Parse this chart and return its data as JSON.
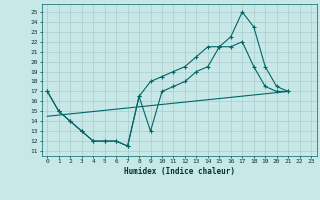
{
  "xlabel": "Humidex (Indice chaleur)",
  "bg_color": "#c8e8e8",
  "grid_color": "#aacccc",
  "line_color": "#006666",
  "xlim": [
    -0.5,
    23.5
  ],
  "ylim": [
    10.5,
    25.8
  ],
  "yticks": [
    11,
    12,
    13,
    14,
    15,
    16,
    17,
    18,
    19,
    20,
    21,
    22,
    23,
    24,
    25
  ],
  "xticks": [
    0,
    1,
    2,
    3,
    4,
    5,
    6,
    7,
    8,
    9,
    10,
    11,
    12,
    13,
    14,
    15,
    16,
    17,
    18,
    19,
    20,
    21,
    22,
    23
  ],
  "series1_x": [
    0,
    1,
    2,
    3,
    4,
    5,
    6,
    7,
    8,
    9,
    10,
    11,
    12,
    13,
    14,
    15,
    16,
    17,
    18,
    19,
    20,
    21
  ],
  "series1_y": [
    17,
    15,
    14,
    13,
    12,
    12,
    12,
    11.5,
    16.5,
    13,
    17,
    17.5,
    18,
    19,
    19.5,
    21.5,
    21.5,
    22,
    19.5,
    17.5,
    17,
    17
  ],
  "series2_x": [
    0,
    1,
    2,
    3,
    4,
    5,
    6,
    7,
    8,
    9,
    10,
    11,
    12,
    13,
    14,
    15,
    16,
    17,
    18,
    19,
    20,
    21
  ],
  "series2_y": [
    17,
    15,
    14,
    13,
    12,
    12,
    12,
    11.5,
    16.5,
    18,
    18.5,
    19,
    19.5,
    20.5,
    21.5,
    21.5,
    22.5,
    25,
    23.5,
    19.5,
    17.5,
    17
  ],
  "series3_x": [
    0,
    21
  ],
  "series3_y": [
    14.5,
    17
  ],
  "marker1_x": [
    0,
    1,
    2,
    3,
    4,
    5,
    6,
    7,
    8,
    9,
    10,
    11,
    12,
    13,
    14,
    15,
    16,
    17,
    18,
    19,
    20,
    21
  ],
  "marker1_y": [
    17,
    15,
    14,
    13,
    12,
    12,
    12,
    11.5,
    16.5,
    13,
    17,
    17.5,
    18,
    19,
    19.5,
    21.5,
    21.5,
    22,
    19.5,
    17.5,
    17,
    17
  ],
  "marker2_x": [
    0,
    1,
    2,
    3,
    4,
    5,
    6,
    7,
    8,
    9,
    10,
    11,
    12,
    13,
    14,
    15,
    16,
    17,
    18,
    19,
    20,
    21
  ],
  "marker2_y": [
    17,
    15,
    14,
    13,
    12,
    12,
    12,
    11.5,
    16.5,
    18,
    18.5,
    19,
    19.5,
    20.5,
    21.5,
    21.5,
    22.5,
    25,
    23.5,
    19.5,
    17.5,
    17
  ]
}
